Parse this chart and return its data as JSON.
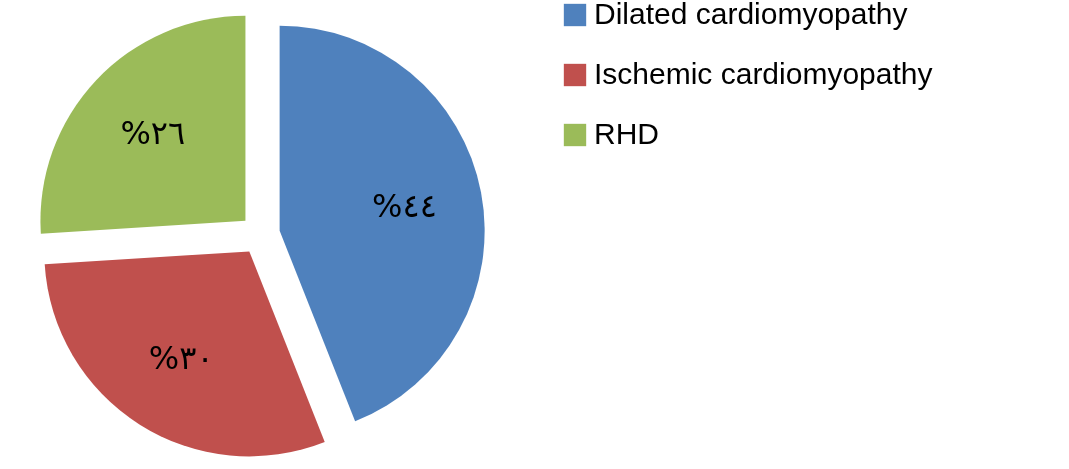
{
  "chart_data": {
    "type": "pie",
    "categories": [
      "Dilated cardiomyopathy",
      "Ischemic cardiomyopathy",
      "RHD"
    ],
    "values": [
      44,
      30,
      26
    ],
    "colors": [
      "#4f81bd",
      "#c0504d",
      "#9bbb59"
    ],
    "value_labels": [
      "%٤٤",
      "%٣٠",
      "%٢٦"
    ],
    "legend": "right"
  }
}
